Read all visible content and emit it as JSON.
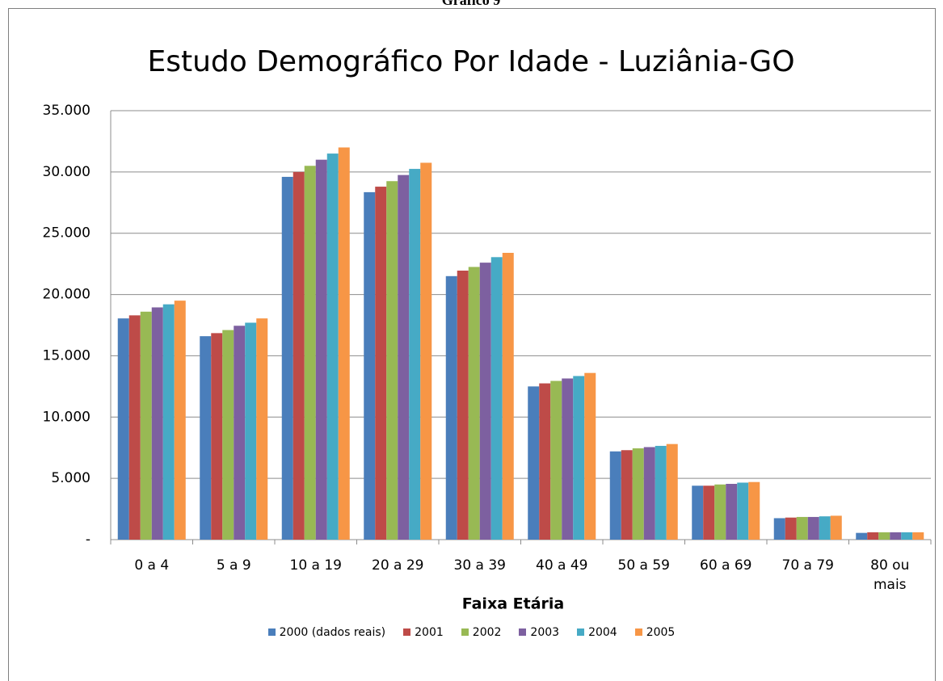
{
  "caption": "Gráfico 9",
  "chart_data": {
    "type": "bar",
    "title": "Estudo Demográfico Por Idade - Luziânia-GO",
    "x_label": "Faixa Etária",
    "categories": [
      "0 a 4",
      "5 a 9",
      "10 a 19",
      "20 a 29",
      "30 a 39",
      "40 a 49",
      "50 a 59",
      "60 a 69",
      "70 a 79",
      "80 ou\nmais"
    ],
    "series": [
      {
        "name": "2000 (dados reais)",
        "color": "#4a7ebb",
        "values": [
          18050,
          16600,
          29600,
          28350,
          21500,
          12500,
          7200,
          4400,
          1750,
          550
        ]
      },
      {
        "name": "2001",
        "color": "#be4b48",
        "values": [
          18300,
          16850,
          30000,
          28800,
          21950,
          12750,
          7300,
          4400,
          1800,
          600
        ]
      },
      {
        "name": "2002",
        "color": "#98b954",
        "values": [
          18600,
          17100,
          30500,
          29250,
          22250,
          12950,
          7450,
          4500,
          1850,
          600
        ]
      },
      {
        "name": "2003",
        "color": "#7d60a0",
        "values": [
          18950,
          17450,
          31000,
          29750,
          22600,
          13150,
          7550,
          4550,
          1850,
          600
        ]
      },
      {
        "name": "2004",
        "color": "#46aac5",
        "values": [
          19200,
          17700,
          31500,
          30250,
          23050,
          13350,
          7650,
          4650,
          1900,
          600
        ]
      },
      {
        "name": "2005",
        "color": "#f79646",
        "values": [
          19500,
          18050,
          32000,
          30750,
          23400,
          13600,
          7800,
          4700,
          1950,
          600
        ]
      }
    ],
    "ylim": [
      0,
      35000
    ],
    "yticks": [
      {
        "value": 0,
        "label": "-"
      },
      {
        "value": 5000,
        "label": "5.000"
      },
      {
        "value": 10000,
        "label": "10.000"
      },
      {
        "value": 15000,
        "label": "15.000"
      },
      {
        "value": 20000,
        "label": "20.000"
      },
      {
        "value": 25000,
        "label": "25.000"
      },
      {
        "value": 30000,
        "label": "30.000"
      },
      {
        "value": 35000,
        "label": "35.000"
      }
    ],
    "grid": true,
    "legend": "bottom"
  }
}
